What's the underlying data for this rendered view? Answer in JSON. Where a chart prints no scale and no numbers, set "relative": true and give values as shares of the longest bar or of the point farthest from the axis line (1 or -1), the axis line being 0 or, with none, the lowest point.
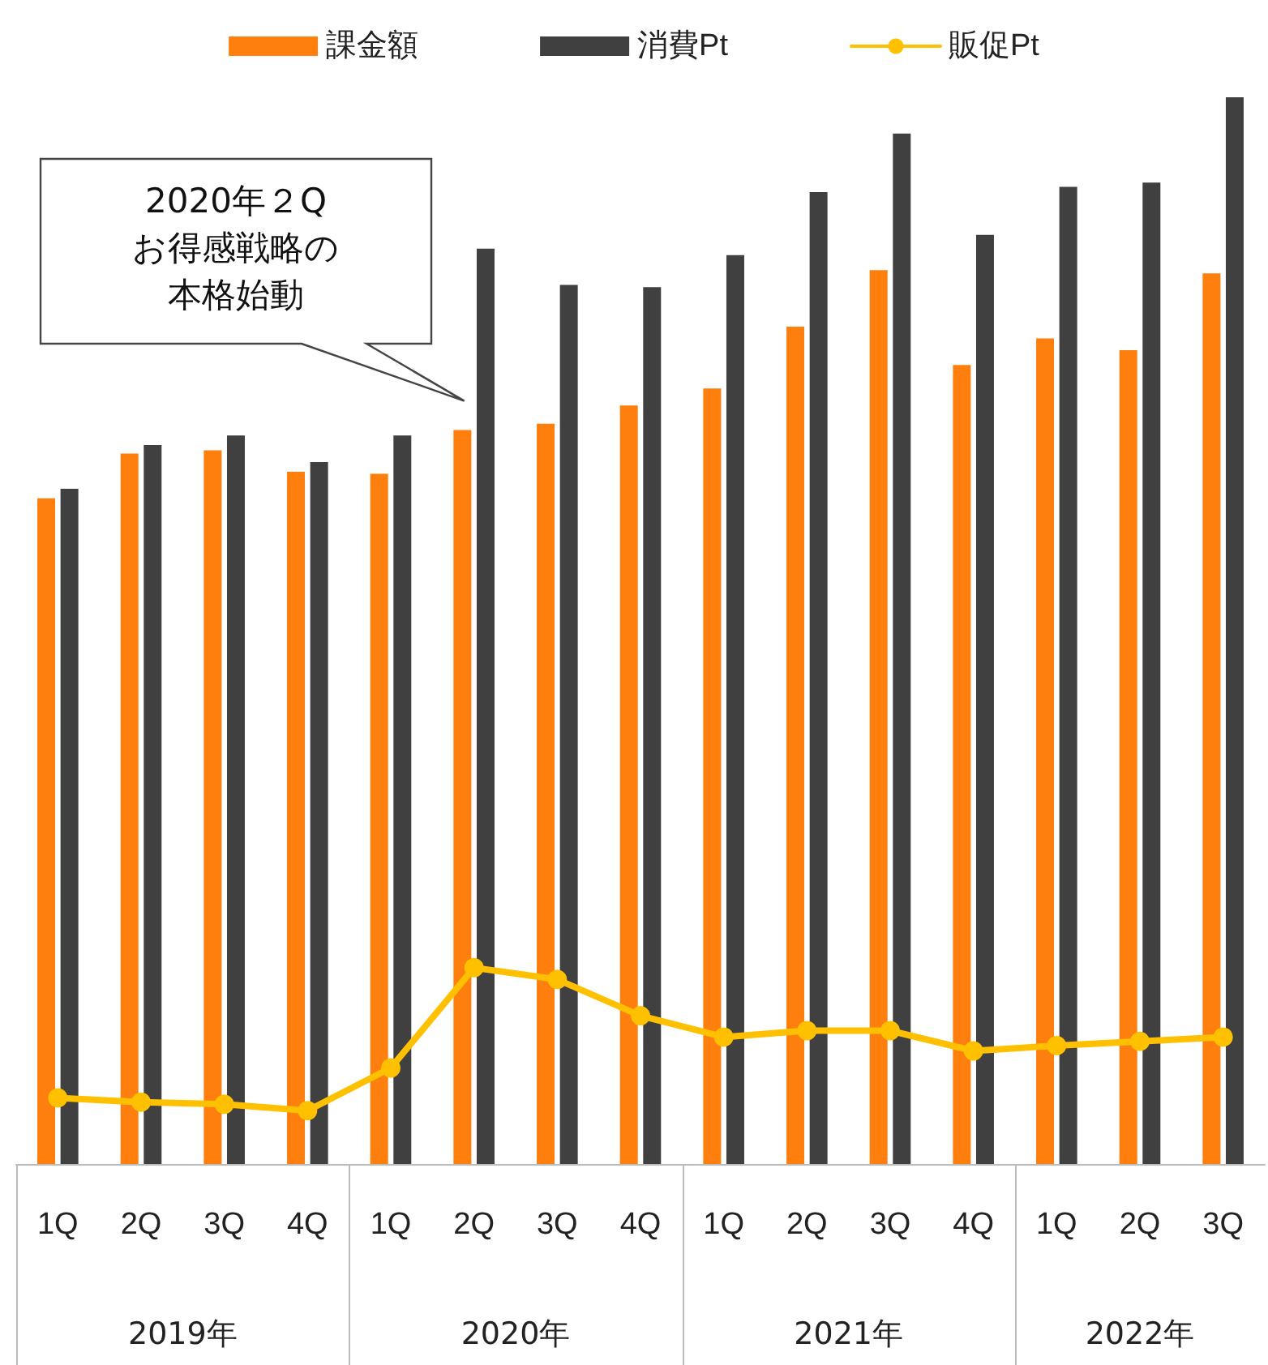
{
  "chart_data": {
    "type": "bar",
    "relative": true,
    "legend": "top",
    "categories": [
      "1Q",
      "2Q",
      "3Q",
      "4Q",
      "1Q",
      "2Q",
      "3Q",
      "4Q",
      "1Q",
      "2Q",
      "3Q",
      "4Q",
      "1Q",
      "2Q",
      "3Q"
    ],
    "series": [
      {
        "name": "課金額",
        "color": "#ff7f0e",
        "values": [
          0.624,
          0.666,
          0.669,
          0.649,
          0.647,
          0.688,
          0.694,
          0.711,
          0.727,
          0.785,
          0.838,
          0.749,
          0.774,
          0.763,
          0.835
        ]
      },
      {
        "name": "消費Pt",
        "color": "#404040",
        "values": [
          0.633,
          0.674,
          0.683,
          0.658,
          0.683,
          0.858,
          0.824,
          0.822,
          0.852,
          0.911,
          0.966,
          0.871,
          0.916,
          0.92,
          1
        ]
      },
      {
        "name": "販促Pt",
        "type": "line",
        "color": "#ffc000",
        "marker": "circle",
        "values": [
          0.062,
          0.058,
          0.056,
          0.05,
          0.09,
          0.184,
          0.173,
          0.139,
          0.119,
          0.125,
          0.125,
          0.106,
          0.111,
          0.115,
          0.119
        ]
      }
    ],
    "annotations": [
      "2020年２Qお得感戦略の本格始動",
      "2019年",
      "2020年",
      "2021年",
      "2022年"
    ]
  }
}
